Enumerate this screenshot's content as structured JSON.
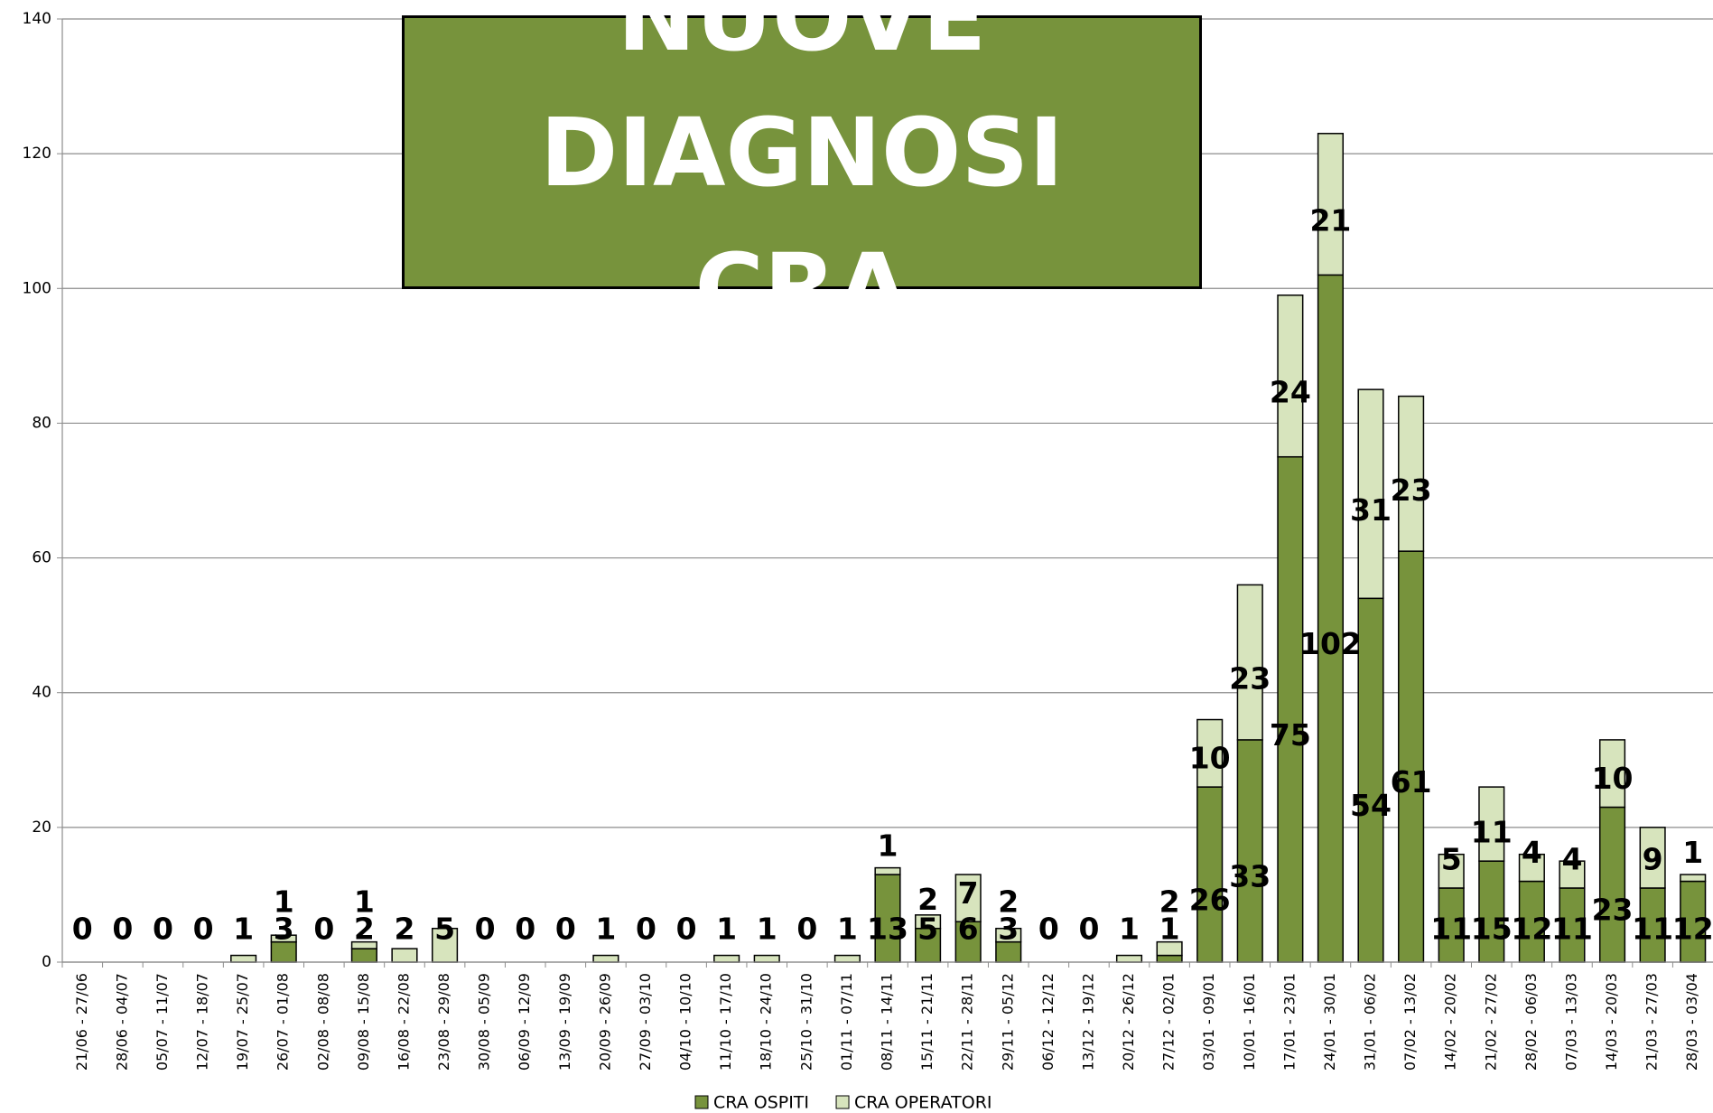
{
  "chart_data": {
    "type": "stacked_bar",
    "title": "NUOVE DIAGNOSI CRA",
    "categories": [
      "21/06 - 27/06",
      "28/06 - 04/07",
      "05/07 - 11/07",
      "12/07 - 18/07",
      "19/07 - 25/07",
      "26/07 - 01/08",
      "02/08 - 08/08",
      "09/08 - 15/08",
      "16/08 - 22/08",
      "23/08 - 29/08",
      "30/08 - 05/09",
      "06/09 - 12/09",
      "13/09 - 19/09",
      "20/09 - 26/09",
      "27/09 - 03/10",
      "04/10 - 10/10",
      "11/10 - 17/10",
      "18/10 - 24/10",
      "25/10 - 31/10",
      "01/11 - 07/11",
      "08/11 - 14/11",
      "15/11 - 21/11",
      "22/11 - 28/11",
      "29/11 - 05/12",
      "06/12 - 12/12",
      "13/12 - 19/12",
      "20/12 - 26/12",
      "27/12 - 02/01",
      "03/01 - 09/01",
      "10/01 - 16/01",
      "17/01 - 23/01",
      "24/01 - 30/01",
      "31/01 - 06/02",
      "07/02 - 13/02",
      "14/02 - 20/02",
      "21/02 - 27/02",
      "28/02 - 06/03",
      "07/03 - 13/03",
      "14/03 - 20/03",
      "21/03 - 27/03",
      "28/03 - 03/04"
    ],
    "series": [
      {
        "name": "CRA OSPITI",
        "color": "#77933c",
        "values": [
          0,
          0,
          0,
          0,
          0,
          3,
          0,
          2,
          0,
          0,
          0,
          0,
          0,
          0,
          0,
          0,
          0,
          0,
          0,
          0,
          13,
          5,
          6,
          3,
          0,
          0,
          0,
          1,
          26,
          33,
          75,
          102,
          54,
          61,
          11,
          15,
          12,
          11,
          23,
          11,
          12
        ]
      },
      {
        "name": "CRA OPERATORI",
        "color": "#d7e4bd",
        "values": [
          0,
          0,
          0,
          0,
          1,
          1,
          0,
          1,
          2,
          5,
          0,
          0,
          0,
          1,
          0,
          0,
          1,
          1,
          0,
          1,
          1,
          2,
          7,
          2,
          0,
          0,
          1,
          2,
          10,
          23,
          24,
          21,
          31,
          23,
          5,
          11,
          4,
          4,
          10,
          9,
          1
        ]
      }
    ],
    "ylim": [
      0,
      140
    ],
    "yticks": [
      0,
      20,
      40,
      60,
      80,
      100,
      120,
      140
    ],
    "grid": true,
    "legend": "bottom"
  }
}
